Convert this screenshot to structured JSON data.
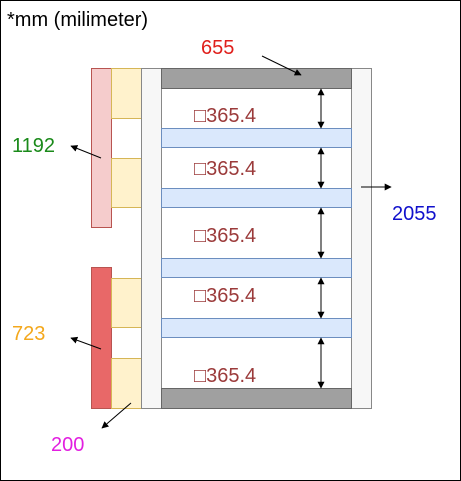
{
  "unit_note": "*mm (milimeter)",
  "dimensions": {
    "top_width": "655",
    "tall_left": "1192",
    "right_height": "2055",
    "short_left": "723",
    "bottom_width": "200",
    "gap": "□365.4"
  },
  "colors": {
    "red_label": "#e0201c",
    "green_label": "#1a8a1a",
    "blue_label": "#1010cc",
    "orange_label": "#f4a81c",
    "magenta_label": "#e21fe0",
    "dim_label": "#9b3a3a",
    "panel_pink": "#f5cccc",
    "panel_red": "#e86868",
    "panel_cream": "#fff2cc",
    "shelf_blue": "#dae8fc",
    "end_gray": "#a0a0a0"
  }
}
